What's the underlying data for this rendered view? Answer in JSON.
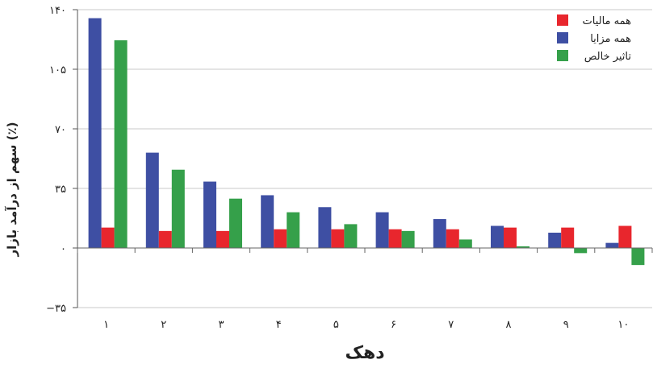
{
  "chart_data": {
    "type": "bar",
    "categories": [
      "۱",
      "۲",
      "۳",
      "۴",
      "۵",
      "۶",
      "۷",
      "۸",
      "۹",
      "۱۰"
    ],
    "series": [
      {
        "name": "همه مالیات",
        "color": "#e8262d",
        "values": [
          12,
          10,
          10,
          11,
          11,
          11,
          11,
          12,
          12,
          13
        ]
      },
      {
        "name": "همه مزایا",
        "color": "#3e4fa3",
        "values": [
          135,
          56,
          39,
          31,
          24,
          21,
          17,
          13,
          9,
          3
        ]
      },
      {
        "name": "تاثیر خالص",
        "color": "#35a04a",
        "values": [
          122,
          46,
          29,
          21,
          14,
          10,
          5,
          1,
          -3,
          -10
        ]
      }
    ],
    "yticks": [
      {
        "value": 140,
        "label": "۱۴۰"
      },
      {
        "value": 105,
        "label": "۱۰۵"
      },
      {
        "value": 70,
        "label": "۷۰"
      },
      {
        "value": 35,
        "label": "۳۵"
      },
      {
        "value": 0,
        "label": "۰"
      },
      {
        "value": -35,
        "label": "−۳۵"
      }
    ],
    "ylim": [
      -35,
      140
    ],
    "xlabel": "دهک",
    "ylabel": "سهم از درآمد بازار (٪)",
    "grid": true,
    "legend_position": "top-right"
  }
}
